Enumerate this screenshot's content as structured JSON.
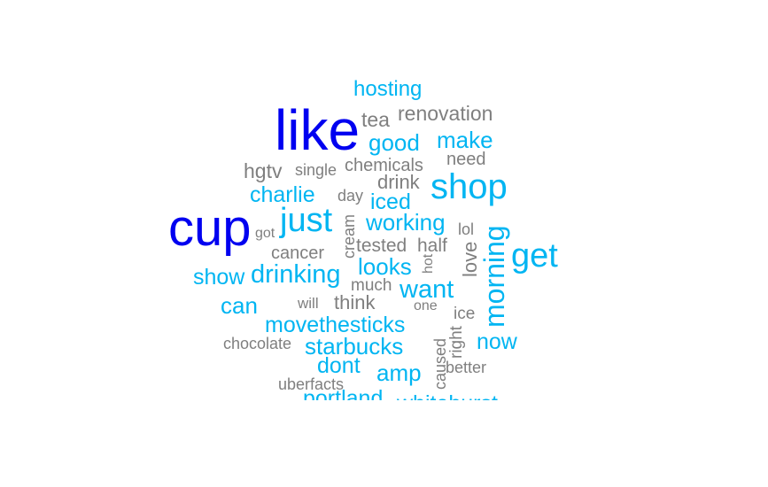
{
  "colors": {
    "high": "#0000f0",
    "mid": "#00b5f2",
    "low": "#7f7f7f",
    "background": "#ffffff"
  },
  "words": [
    {
      "text": "hosting",
      "tier": "mid"
    },
    {
      "text": "like",
      "tier": "high"
    },
    {
      "text": "tea",
      "tier": "low"
    },
    {
      "text": "renovation",
      "tier": "low"
    },
    {
      "text": "good",
      "tier": "mid"
    },
    {
      "text": "make",
      "tier": "mid"
    },
    {
      "text": "hgtv",
      "tier": "low"
    },
    {
      "text": "single",
      "tier": "low"
    },
    {
      "text": "chemicals",
      "tier": "low"
    },
    {
      "text": "need",
      "tier": "low"
    },
    {
      "text": "drink",
      "tier": "low"
    },
    {
      "text": "shop",
      "tier": "mid"
    },
    {
      "text": "charlie",
      "tier": "mid"
    },
    {
      "text": "day",
      "tier": "low"
    },
    {
      "text": "iced",
      "tier": "mid"
    },
    {
      "text": "cup",
      "tier": "high"
    },
    {
      "text": "just",
      "tier": "mid"
    },
    {
      "text": "cream",
      "tier": "low"
    },
    {
      "text": "working",
      "tier": "mid"
    },
    {
      "text": "got",
      "tier": "low"
    },
    {
      "text": "lol",
      "tier": "low"
    },
    {
      "text": "morning",
      "tier": "mid"
    },
    {
      "text": "get",
      "tier": "mid"
    },
    {
      "text": "cancer",
      "tier": "low"
    },
    {
      "text": "tested",
      "tier": "low"
    },
    {
      "text": "half",
      "tier": "low"
    },
    {
      "text": "love",
      "tier": "low"
    },
    {
      "text": "hot",
      "tier": "low"
    },
    {
      "text": "looks",
      "tier": "mid"
    },
    {
      "text": "show",
      "tier": "mid"
    },
    {
      "text": "drinking",
      "tier": "mid"
    },
    {
      "text": "much",
      "tier": "low"
    },
    {
      "text": "want",
      "tier": "mid"
    },
    {
      "text": "can",
      "tier": "mid"
    },
    {
      "text": "will",
      "tier": "low"
    },
    {
      "text": "think",
      "tier": "low"
    },
    {
      "text": "one",
      "tier": "low"
    },
    {
      "text": "ice",
      "tier": "low"
    },
    {
      "text": "movethesticks",
      "tier": "mid"
    },
    {
      "text": "right",
      "tier": "low"
    },
    {
      "text": "now",
      "tier": "mid"
    },
    {
      "text": "chocolate",
      "tier": "low"
    },
    {
      "text": "starbucks",
      "tier": "mid"
    },
    {
      "text": "caused",
      "tier": "low"
    },
    {
      "text": "dont",
      "tier": "mid"
    },
    {
      "text": "better",
      "tier": "low"
    },
    {
      "text": "amp",
      "tier": "mid"
    },
    {
      "text": "uberfacts",
      "tier": "low"
    },
    {
      "text": "portland",
      "tier": "mid"
    },
    {
      "text": "whitehurst",
      "tier": "mid"
    }
  ]
}
